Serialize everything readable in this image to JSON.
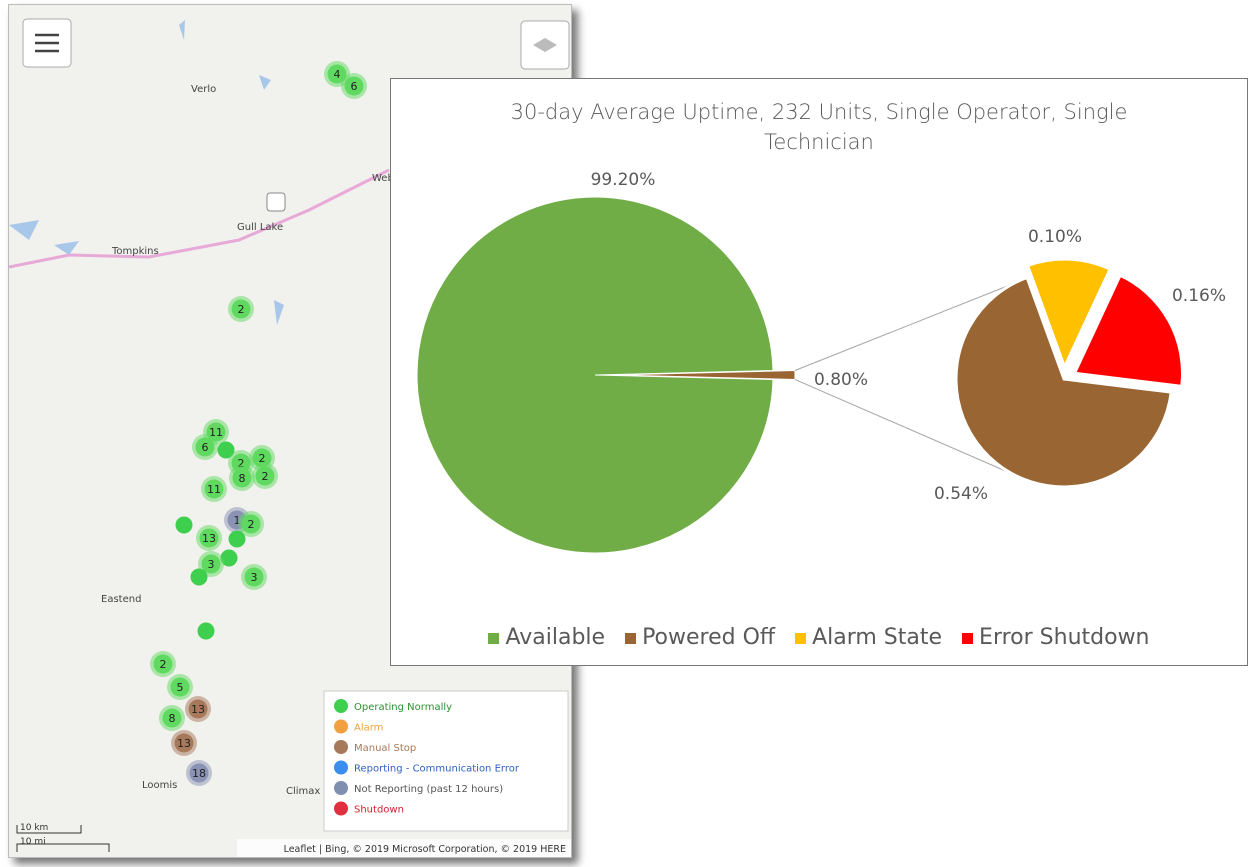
{
  "map": {
    "places": [
      "Verlo",
      "Webb",
      "Gull Lake",
      "Tompkins",
      "Eastend",
      "Loomis",
      "Climax"
    ],
    "clusters": [
      {
        "label": "4",
        "color": "#5fd95f"
      },
      {
        "label": "6",
        "color": "#5fd95f"
      },
      {
        "label": "2",
        "color": "#5fd95f"
      },
      {
        "label": "11",
        "color": "#5fd95f"
      },
      {
        "label": "6",
        "color": "#5fd95f"
      },
      {
        "label": null,
        "color": "#3ecf4e"
      },
      {
        "label": "2",
        "color": "#5fd95f"
      },
      {
        "label": "2",
        "color": "#5fd95f"
      },
      {
        "label": "8",
        "color": "#5fd95f"
      },
      {
        "label": "2",
        "color": "#5fd95f"
      },
      {
        "label": "11",
        "color": "#5fd95f"
      },
      {
        "label": "1",
        "color": "#8a93b4"
      },
      {
        "label": "2",
        "color": "#5fd95f"
      },
      {
        "label": null,
        "color": "#3ecf4e"
      },
      {
        "label": "13",
        "color": "#5fd95f"
      },
      {
        "label": null,
        "color": "#3ecf4e"
      },
      {
        "label": null,
        "color": "#3ecf4e"
      },
      {
        "label": "3",
        "color": "#5fd95f"
      },
      {
        "label": null,
        "color": "#3ecf4e"
      },
      {
        "label": "3",
        "color": "#5fd95f"
      },
      {
        "label": null,
        "color": "#3ecf4e"
      },
      {
        "label": "2",
        "color": "#5fd95f"
      },
      {
        "label": "5",
        "color": "#5fd95f"
      },
      {
        "label": "13",
        "color": "#a8785a"
      },
      {
        "label": "8",
        "color": "#5fd95f"
      },
      {
        "label": "13",
        "color": "#a8785a"
      },
      {
        "label": "18",
        "color": "#8a93b4"
      }
    ],
    "legend": [
      {
        "label": "Operating Normally",
        "color": "#3ecf4e",
        "text_color": "#2f8f2f"
      },
      {
        "label": "Alarm",
        "color": "#f0a040",
        "text_color": "#f0a040"
      },
      {
        "label": "Manual Stop",
        "color": "#a8785a",
        "text_color": "#a8785a"
      },
      {
        "label": "Reporting - Communication Error",
        "color": "#3b8ef0",
        "text_color": "#3060c0"
      },
      {
        "label": "Not Reporting (past 12 hours)",
        "color": "#7f8fb0",
        "text_color": "#555"
      },
      {
        "label": "Shutdown",
        "color": "#e03040",
        "text_color": "#d02030"
      }
    ],
    "scale": [
      "10 km",
      "10 mi"
    ],
    "attribution": "Leaflet | Bing, © 2019 Microsoft Corporation, © 2019 HERE"
  },
  "chart_data": {
    "type": "pie-of-pie",
    "title": "30-day Average Uptime, 232 Units, Single Operator, Single Technician",
    "categories": [
      "Available",
      "Powered Off",
      "Alarm State",
      "Error Shutdown"
    ],
    "values": [
      99.2,
      0.54,
      0.1,
      0.16
    ],
    "value_labels": [
      "99.20%",
      "0.54%",
      "0.10%",
      "0.16%"
    ],
    "colors": [
      "#70ad47",
      "#996633",
      "#ffc000",
      "#ff0000"
    ],
    "split": {
      "value": 0.8,
      "label": "0.80%"
    },
    "legend": "bottom"
  }
}
